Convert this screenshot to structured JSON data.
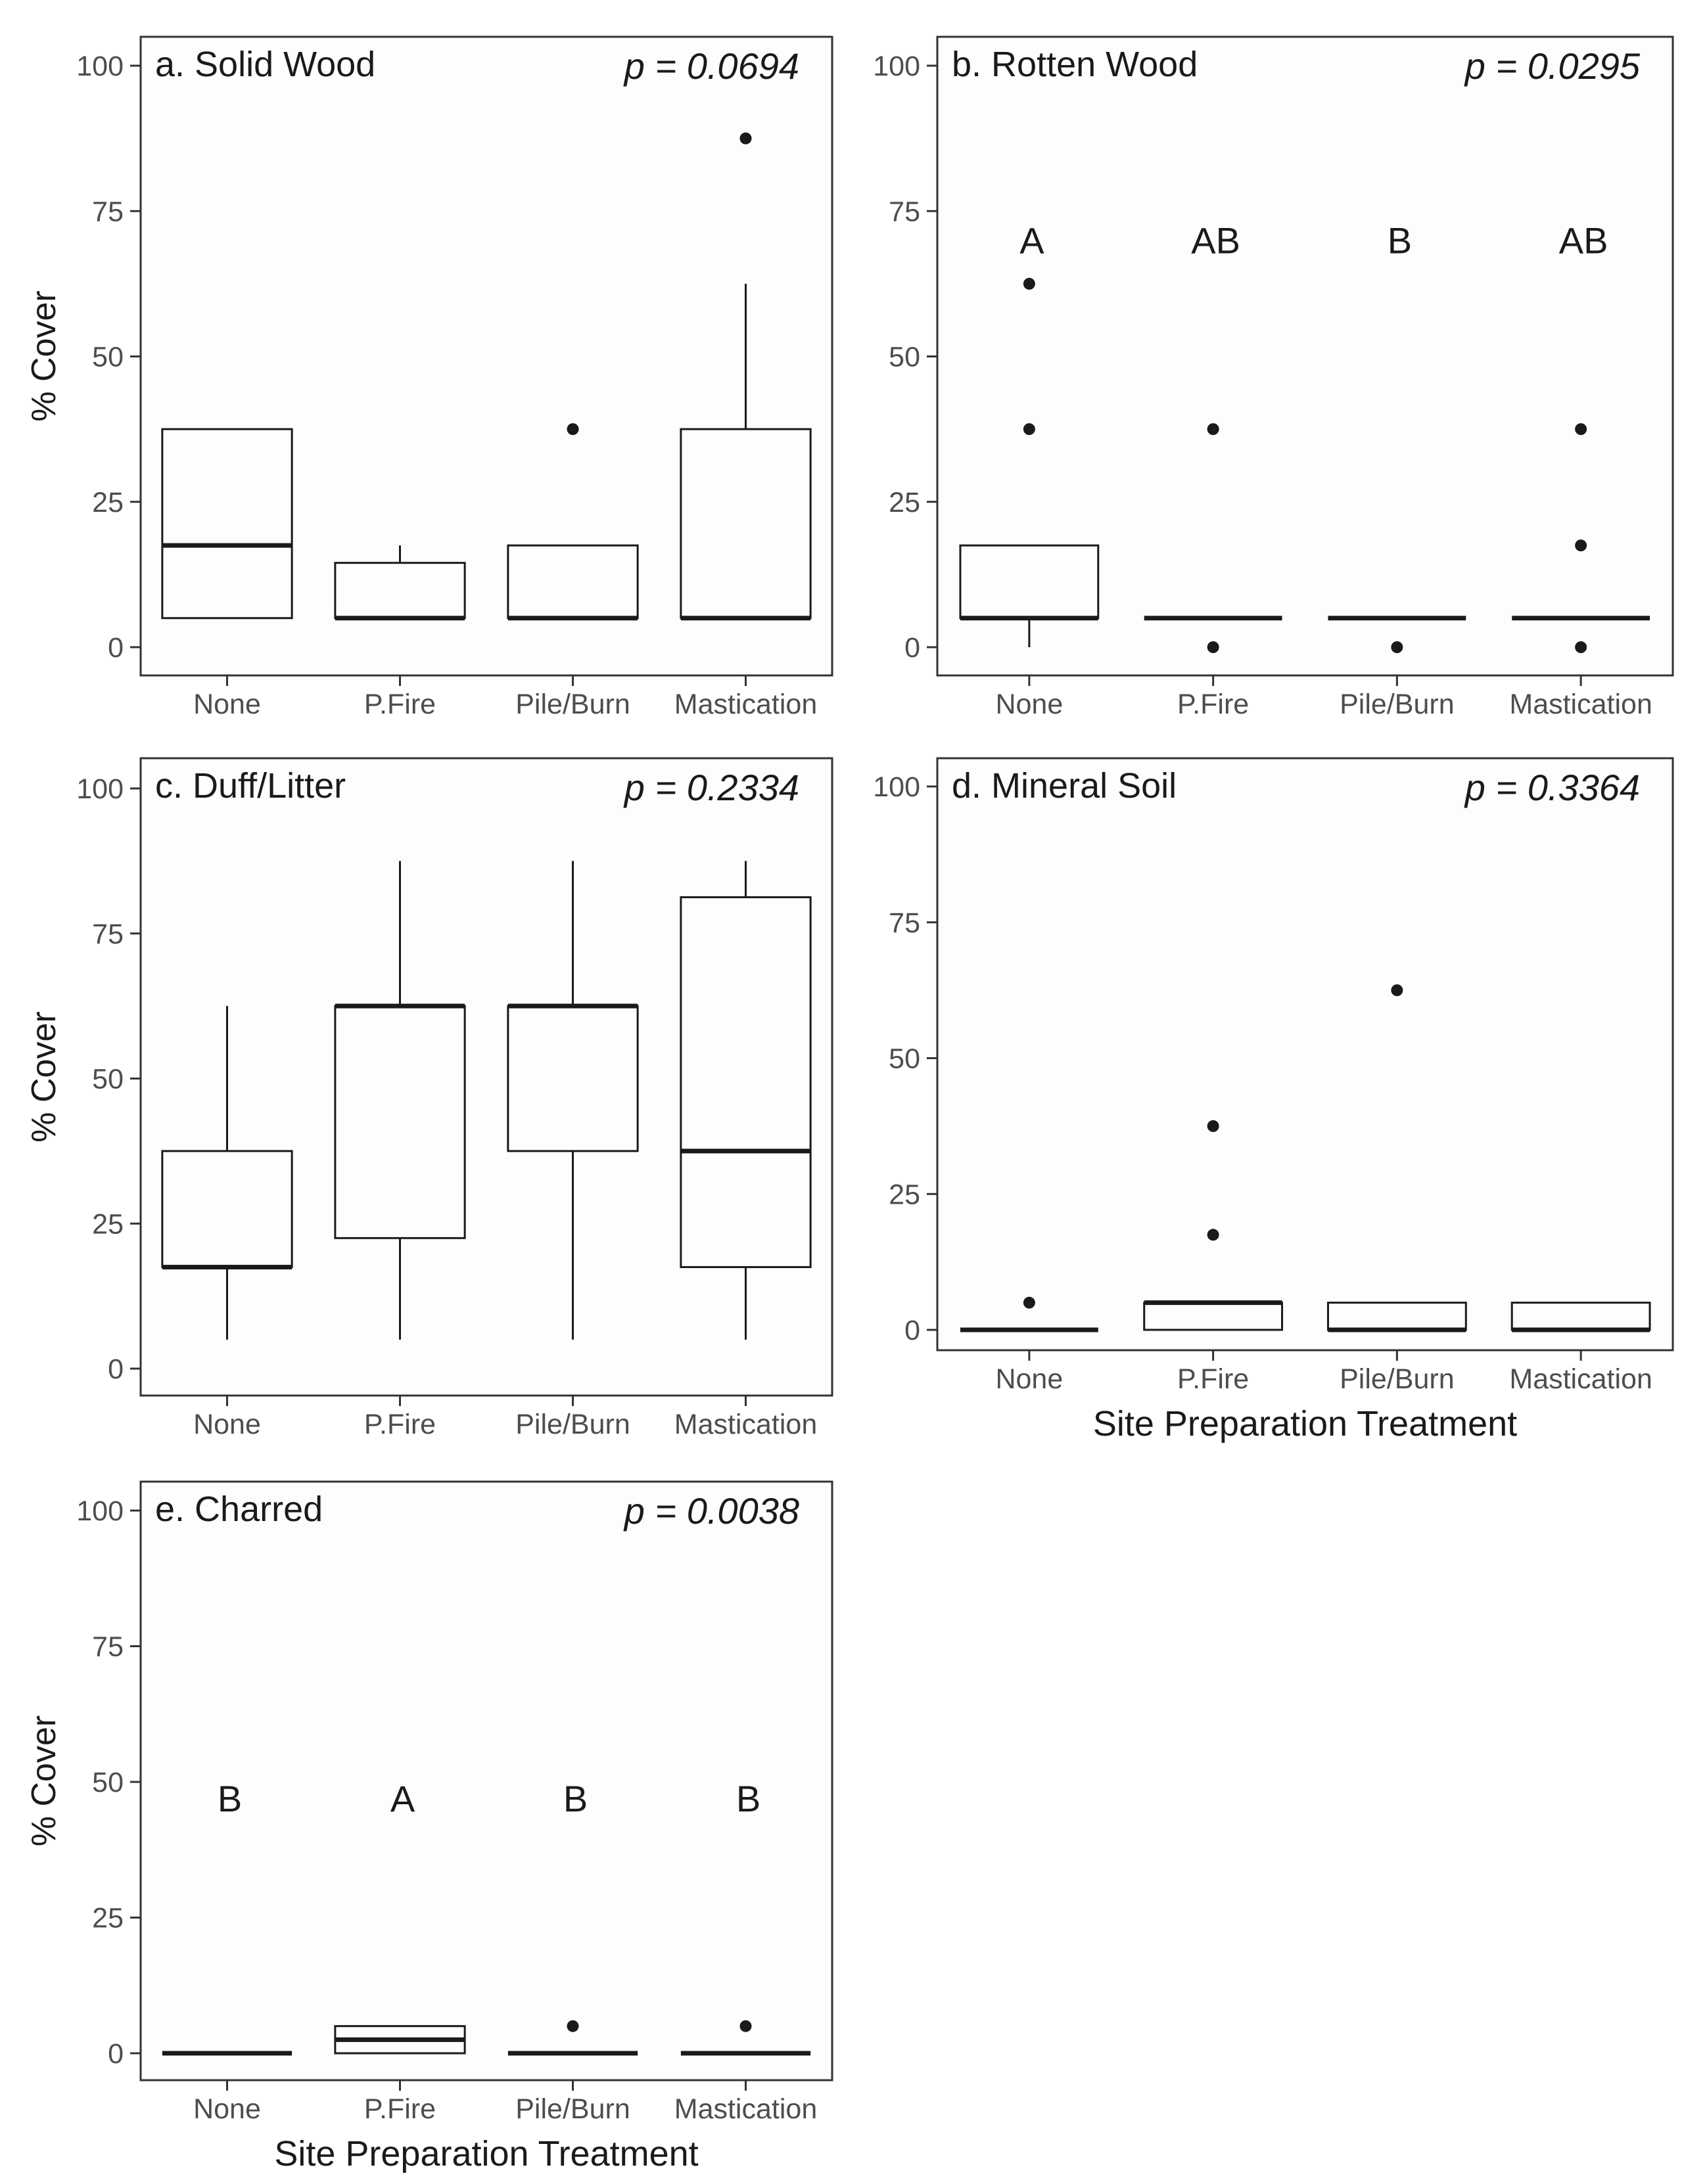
{
  "figure": {
    "shared_categories": [
      "None",
      "P.Fire",
      "Pile/Burn",
      "Mastication"
    ],
    "x_axis_title": "Site Preparation Treatment",
    "y_axis_title": "% Cover",
    "y_ticks": [
      "0",
      "25",
      "50",
      "75",
      "100"
    ]
  },
  "chart_data": [
    {
      "id": "a",
      "type": "boxplot",
      "title": "a. Solid Wood",
      "p_label": "p",
      "p_value": "= 0.0694",
      "ylabel": "% Cover",
      "xlabel": "",
      "ylim": [
        0,
        100
      ],
      "yticks": [
        0,
        25,
        50,
        75,
        100
      ],
      "categories": [
        "None",
        "P.Fire",
        "Pile/Burn",
        "Mastication"
      ],
      "boxes": [
        {
          "category": "None",
          "q1": 5,
          "median": 17.5,
          "q3": 37.5,
          "whisker_low": 5,
          "whisker_high": 37.5,
          "outliers": []
        },
        {
          "category": "P.Fire",
          "q1": 5,
          "median": 5,
          "q3": 14.5,
          "whisker_low": 5,
          "whisker_high": 17.5,
          "outliers": []
        },
        {
          "category": "Pile/Burn",
          "q1": 5,
          "median": 5,
          "q3": 17.5,
          "whisker_low": 5,
          "whisker_high": 17.5,
          "outliers": [
            37.5
          ]
        },
        {
          "category": "Mastication",
          "q1": 5,
          "median": 5,
          "q3": 37.5,
          "whisker_low": 5,
          "whisker_high": 62.5,
          "outliers": [
            87.5
          ]
        }
      ],
      "group_letters": []
    },
    {
      "id": "b",
      "type": "boxplot",
      "title": "b. Rotten Wood",
      "p_label": "p",
      "p_value": "= 0.0295",
      "ylabel": "",
      "xlabel": "",
      "ylim": [
        0,
        100
      ],
      "yticks": [
        0,
        25,
        50,
        75,
        100
      ],
      "categories": [
        "None",
        "P.Fire",
        "Pile/Burn",
        "Mastication"
      ],
      "boxes": [
        {
          "category": "None",
          "q1": 5,
          "median": 5,
          "q3": 17.5,
          "whisker_low": 0,
          "whisker_high": 17.5,
          "outliers": [
            37.5,
            62.5
          ]
        },
        {
          "category": "P.Fire",
          "q1": 5,
          "median": 5,
          "q3": 5,
          "whisker_low": 5,
          "whisker_high": 5,
          "outliers": [
            0,
            37.5
          ]
        },
        {
          "category": "Pile/Burn",
          "q1": 5,
          "median": 5,
          "q3": 5,
          "whisker_low": 5,
          "whisker_high": 5,
          "outliers": [
            0
          ]
        },
        {
          "category": "Mastication",
          "q1": 5,
          "median": 5,
          "q3": 5,
          "whisker_low": 5,
          "whisker_high": 5,
          "outliers": [
            0,
            17.5,
            37.5
          ]
        }
      ],
      "group_letters": [
        "A",
        "AB",
        "B",
        "AB"
      ],
      "letter_y": 70
    },
    {
      "id": "c",
      "type": "boxplot",
      "title": "c. Duff/Litter",
      "p_label": "p",
      "p_value": "= 0.2334",
      "ylabel": "% Cover",
      "xlabel": "",
      "ylim": [
        0,
        100
      ],
      "yticks": [
        0,
        25,
        50,
        75,
        100
      ],
      "categories": [
        "None",
        "P.Fire",
        "Pile/Burn",
        "Mastication"
      ],
      "boxes": [
        {
          "category": "None",
          "q1": 17.5,
          "median": 17.5,
          "q3": 37.5,
          "whisker_low": 5,
          "whisker_high": 62.5,
          "outliers": []
        },
        {
          "category": "P.Fire",
          "q1": 22.5,
          "median": 62.5,
          "q3": 62.5,
          "whisker_low": 5,
          "whisker_high": 87.5,
          "outliers": []
        },
        {
          "category": "Pile/Burn",
          "q1": 37.5,
          "median": 62.5,
          "q3": 62.5,
          "whisker_low": 5,
          "whisker_high": 87.5,
          "outliers": []
        },
        {
          "category": "Mastication",
          "q1": 17.5,
          "median": 37.5,
          "q3": 81.25,
          "whisker_low": 5,
          "whisker_high": 87.5,
          "outliers": []
        }
      ],
      "group_letters": []
    },
    {
      "id": "d",
      "type": "boxplot",
      "title": "d. Mineral Soil",
      "p_label": "p",
      "p_value": "= 0.3364",
      "ylabel": "",
      "xlabel": "Site Preparation Treatment",
      "ylim": [
        0,
        100
      ],
      "yticks": [
        0,
        25,
        50,
        75,
        100
      ],
      "categories": [
        "None",
        "P.Fire",
        "Pile/Burn",
        "Mastication"
      ],
      "boxes": [
        {
          "category": "None",
          "q1": 0,
          "median": 0,
          "q3": 0,
          "whisker_low": 0,
          "whisker_high": 0,
          "outliers": [
            5
          ]
        },
        {
          "category": "P.Fire",
          "q1": 0,
          "median": 5,
          "q3": 5,
          "whisker_low": 0,
          "whisker_high": 5,
          "outliers": [
            17.5,
            37.5
          ]
        },
        {
          "category": "Pile/Burn",
          "q1": 0,
          "median": 0,
          "q3": 5,
          "whisker_low": 0,
          "whisker_high": 5,
          "outliers": [
            62.5
          ]
        },
        {
          "category": "Mastication",
          "q1": 0,
          "median": 0,
          "q3": 5,
          "whisker_low": 0,
          "whisker_high": 5,
          "outliers": []
        }
      ],
      "group_letters": []
    },
    {
      "id": "e",
      "type": "boxplot",
      "title": "e. Charred",
      "p_label": "p",
      "p_value": "= 0.0038",
      "ylabel": "% Cover",
      "xlabel": "Site Preparation Treatment",
      "ylim": [
        0,
        100
      ],
      "yticks": [
        0,
        25,
        50,
        75,
        100
      ],
      "categories": [
        "None",
        "P.Fire",
        "Pile/Burn",
        "Mastication"
      ],
      "boxes": [
        {
          "category": "None",
          "q1": 0,
          "median": 0,
          "q3": 0,
          "whisker_low": 0,
          "whisker_high": 0,
          "outliers": []
        },
        {
          "category": "P.Fire",
          "q1": 0,
          "median": 2.5,
          "q3": 5,
          "whisker_low": 0,
          "whisker_high": 5,
          "outliers": []
        },
        {
          "category": "Pile/Burn",
          "q1": 0,
          "median": 0,
          "q3": 0,
          "whisker_low": 0,
          "whisker_high": 0,
          "outliers": [
            5
          ]
        },
        {
          "category": "Mastication",
          "q1": 0,
          "median": 0,
          "q3": 0,
          "whisker_low": 0,
          "whisker_high": 0,
          "outliers": [
            5
          ]
        }
      ],
      "group_letters": [
        "B",
        "A",
        "B",
        "B"
      ],
      "letter_y": 47
    }
  ]
}
